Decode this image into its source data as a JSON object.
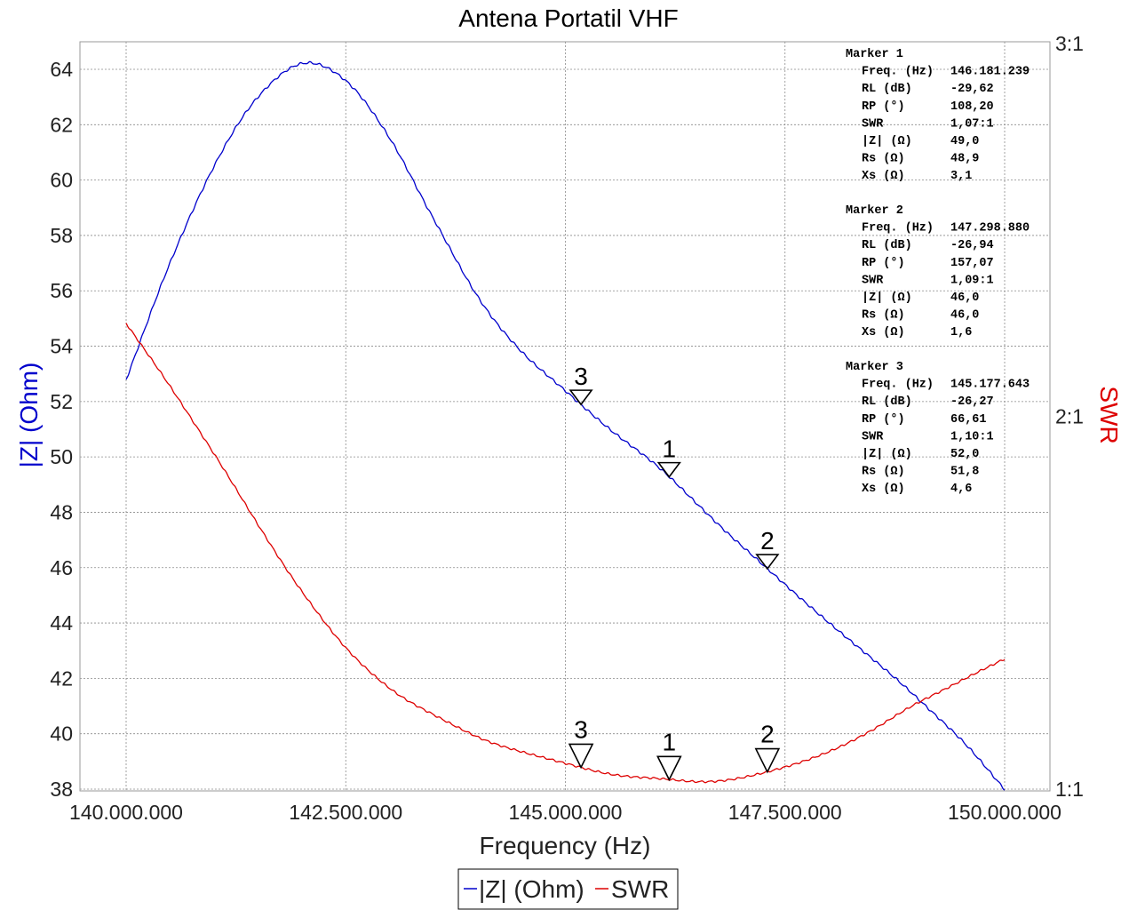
{
  "chart_data": {
    "type": "line",
    "title": "Antena Portatil VHF",
    "xlabel": "Frequency (Hz)",
    "ylabel_left": "|Z| (Ohm)",
    "ylabel_right": "SWR",
    "xlim": [
      139000000,
      151000000
    ],
    "ylim_left": [
      38,
      65
    ],
    "ylim_right": [
      1.0,
      3.0
    ],
    "x_ticks": [
      140000000,
      142500000,
      145000000,
      147500000,
      150000000
    ],
    "x_tick_labels": [
      "140.000.000",
      "142.500.000",
      "145.000.000",
      "147.500.000",
      "150.000.000"
    ],
    "y_left_ticks": [
      38,
      40,
      42,
      44,
      46,
      48,
      50,
      52,
      54,
      56,
      58,
      60,
      62,
      64
    ],
    "y_right_ticks": [
      1.0,
      2.0,
      3.0
    ],
    "y_right_tick_labels": [
      "1:1",
      "2:1",
      "3:1"
    ],
    "grid": true,
    "legend_position": "bottom-center",
    "colors": {
      "z": "#0000cc",
      "swr": "#dd0000"
    },
    "series": [
      {
        "name": "|Z| (Ohm)",
        "axis": "left",
        "x": [
          140000000,
          140500000,
          141000000,
          141500000,
          142000000,
          142500000,
          143000000,
          143500000,
          144000000,
          144500000,
          145000000,
          145500000,
          146000000,
          146500000,
          147000000,
          147500000,
          148000000,
          148500000,
          149000000,
          149500000,
          150000000
        ],
        "values": [
          52.8,
          57.0,
          60.5,
          63.0,
          64.2,
          63.6,
          61.5,
          58.6,
          55.8,
          53.8,
          52.4,
          51.0,
          49.8,
          48.3,
          46.8,
          45.4,
          44.0,
          42.7,
          41.3,
          39.8,
          38.0
        ]
      },
      {
        "name": "SWR",
        "axis": "right",
        "x": [
          140000000,
          140500000,
          141000000,
          141500000,
          142000000,
          142500000,
          143000000,
          143500000,
          144000000,
          144500000,
          145000000,
          145500000,
          146000000,
          146500000,
          147000000,
          147500000,
          148000000,
          148500000,
          149000000,
          149500000,
          150000000
        ],
        "values": [
          2.25,
          2.08,
          1.9,
          1.71,
          1.53,
          1.38,
          1.27,
          1.2,
          1.14,
          1.1,
          1.07,
          1.04,
          1.03,
          1.02,
          1.03,
          1.06,
          1.1,
          1.16,
          1.23,
          1.29,
          1.35
        ]
      }
    ],
    "markers": [
      {
        "label": "1",
        "x": 146181239,
        "z": 49.0,
        "swr": 1.07
      },
      {
        "label": "2",
        "x": 147298880,
        "z": 46.0,
        "swr": 1.09
      },
      {
        "label": "3",
        "x": 145177643,
        "z": 52.0,
        "swr": 1.1
      }
    ]
  },
  "marker_panel": [
    {
      "title": "Marker 1",
      "rows": [
        {
          "label": "Freq. (Hz)",
          "value": "146.181.239"
        },
        {
          "label": "RL (dB)",
          "value": "-29,62"
        },
        {
          "label": "RP (°)",
          "value": "108,20"
        },
        {
          "label": "SWR",
          "value": "1,07:1"
        },
        {
          "label": "|Z| (Ω)",
          "value": "49,0"
        },
        {
          "label": "Rs (Ω)",
          "value": "48,9"
        },
        {
          "label": "Xs (Ω)",
          "value": "3,1"
        }
      ]
    },
    {
      "title": "Marker 2",
      "rows": [
        {
          "label": "Freq. (Hz)",
          "value": "147.298.880"
        },
        {
          "label": "RL (dB)",
          "value": "-26,94"
        },
        {
          "label": "RP (°)",
          "value": "157,07"
        },
        {
          "label": "SWR",
          "value": "1,09:1"
        },
        {
          "label": "|Z| (Ω)",
          "value": "46,0"
        },
        {
          "label": "Rs (Ω)",
          "value": "46,0"
        },
        {
          "label": "Xs (Ω)",
          "value": "1,6"
        }
      ]
    },
    {
      "title": "Marker 3",
      "rows": [
        {
          "label": "Freq. (Hz)",
          "value": "145.177.643"
        },
        {
          "label": "RL (dB)",
          "value": "-26,27"
        },
        {
          "label": "RP (°)",
          "value": "66,61"
        },
        {
          "label": "SWR",
          "value": "1,10:1"
        },
        {
          "label": "|Z| (Ω)",
          "value": "52,0"
        },
        {
          "label": "Rs (Ω)",
          "value": "51,8"
        },
        {
          "label": "Xs (Ω)",
          "value": "4,6"
        }
      ]
    }
  ],
  "legend": {
    "items": [
      "|Z| (Ohm)",
      "SWR"
    ]
  }
}
